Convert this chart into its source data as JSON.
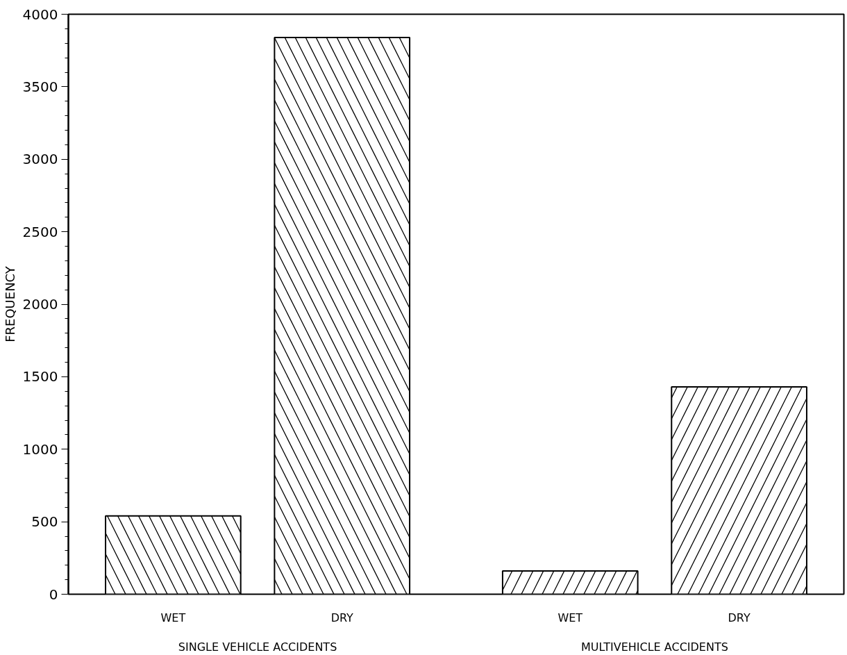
{
  "chart_data": {
    "type": "bar",
    "ylabel": "FREQUENCY",
    "categories": [
      "WET",
      "DRY",
      "WET",
      "DRY"
    ],
    "series": [
      {
        "color": "#000000",
        "values": [
          540,
          3840,
          null,
          null
        ]
      },
      {
        "color": "#000000",
        "values": [
          null,
          null,
          160,
          1430
        ]
      }
    ],
    "annotations": [
      "SINGLE VEHICLE ACCIDENTS",
      "MULTIVEHICLE ACCIDENTS"
    ],
    "ylim": [
      0,
      4000
    ],
    "yticks": [
      0,
      500,
      1000,
      1500,
      2000,
      2500,
      3000,
      3500,
      4000
    ],
    "grid": false
  }
}
